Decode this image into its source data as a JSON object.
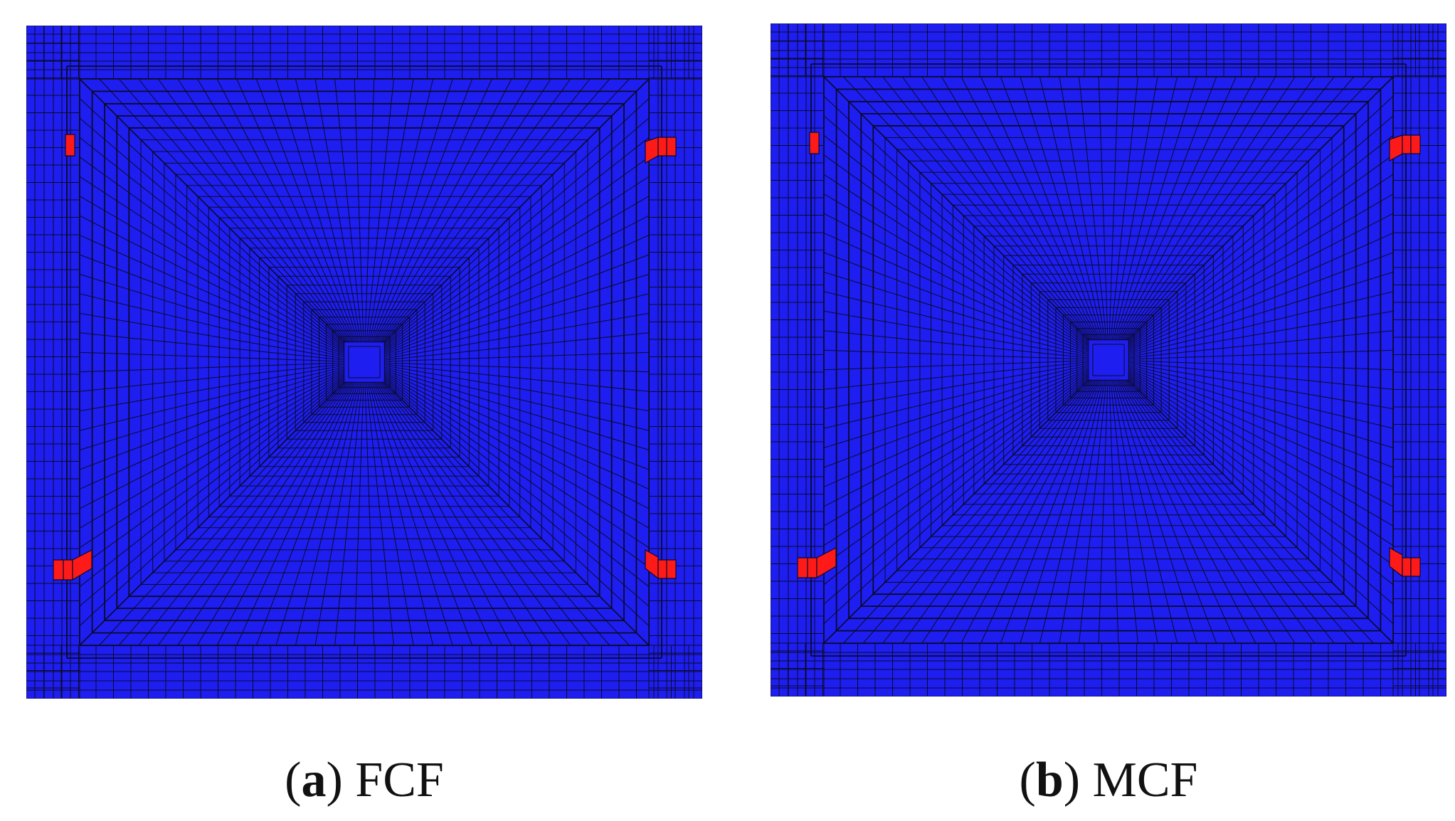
{
  "colors": {
    "mesh_fill": "#1e1ef0",
    "mesh_line": "#0a0a28",
    "highlight_element": "#ff1a1a",
    "background": "#ffffff"
  },
  "panels": [
    {
      "id": "a",
      "caption": {
        "open": "(",
        "letter": "a",
        "close": ")",
        "label": "FCF"
      }
    },
    {
      "id": "b",
      "caption": {
        "open": "(",
        "letter": "b",
        "close": ")",
        "label": "MCF"
      }
    }
  ]
}
